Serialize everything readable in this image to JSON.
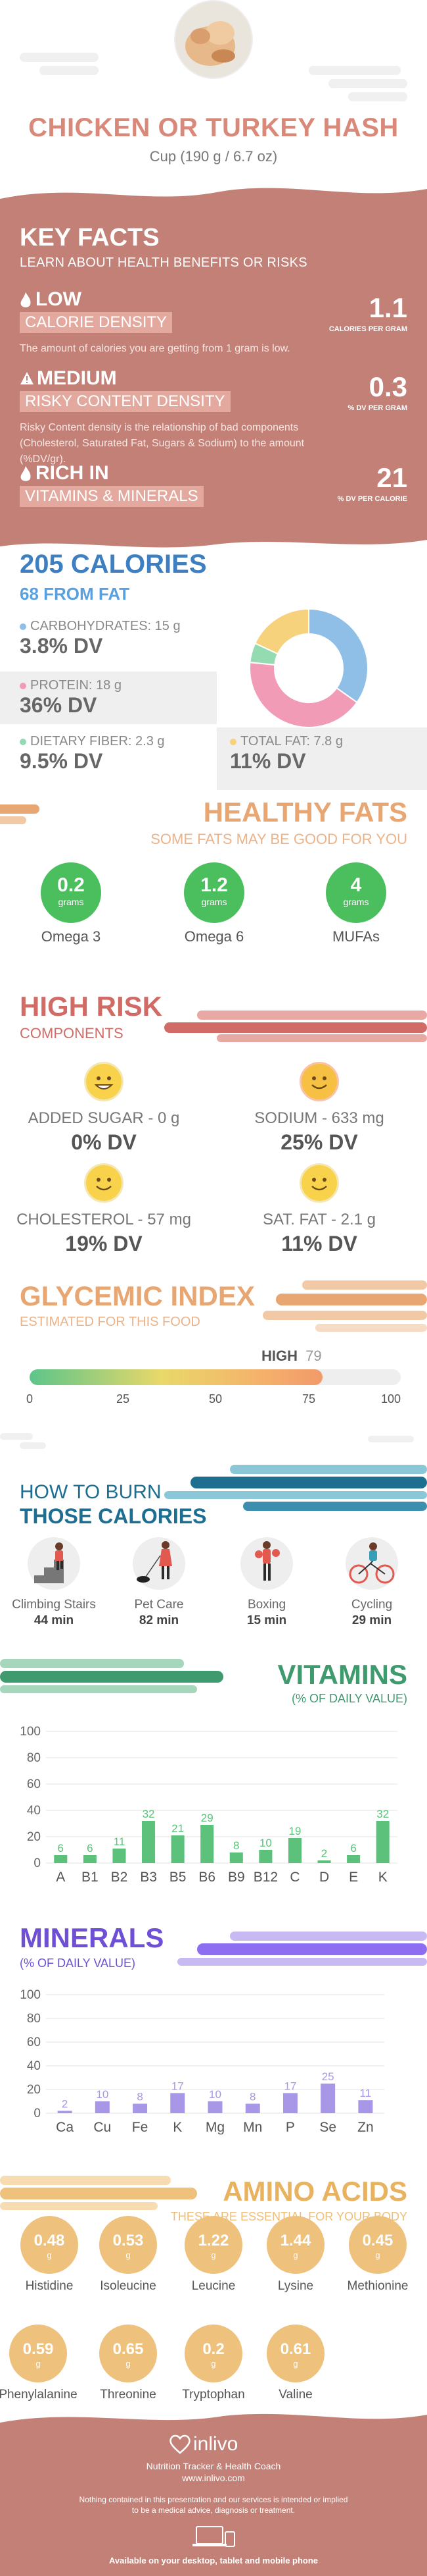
{
  "header": {
    "title": "CHICKEN OR TURKEY HASH",
    "serving": "Cup (190 g / 6.7 oz)"
  },
  "key_facts": {
    "heading": "KEY FACTS",
    "subheading": "LEARN ABOUT HEALTH BENEFITS OR RISKS",
    "items": [
      {
        "level": "LOW",
        "tag": "CALORIE DENSITY",
        "desc": "The amount of calories you are getting from 1 gram is low.",
        "value": "1.1",
        "unit": "CALORIES PER GRAM",
        "icon": "flame-icon"
      },
      {
        "level": "MEDIUM",
        "tag": "RISKY CONTENT DENSITY",
        "desc": "Risky Content density is the relationship of bad components (Cholesterol, Saturated Fat, Sugars & Sodium) to the amount (%DV/gr).",
        "value": "0.3",
        "unit": "% DV PER GRAM",
        "icon": "warning-icon"
      },
      {
        "level": "RICH IN",
        "tag": "VITAMINS & MINERALS",
        "desc": "",
        "value": "21",
        "unit": "% DV PER CALORIE",
        "icon": "flame-icon"
      }
    ]
  },
  "calories": {
    "title": "205 CALORIES",
    "from_fat": "68 FROM FAT",
    "nutrients": [
      {
        "label": "CARBOHYDRATES: 15 g",
        "dv": "3.8% DV",
        "color": "#8fbfe6"
      },
      {
        "label": "PROTEIN: 18 g",
        "dv": "36% DV",
        "color": "#f29bb6"
      },
      {
        "label": "DIETARY FIBER: 2.3 g",
        "dv": "9.5% DV",
        "color": "#95dbb2"
      },
      {
        "label": "TOTAL FAT: 7.8 g",
        "dv": "11% DV",
        "color": "#f6d27d"
      }
    ]
  },
  "healthy_fats": {
    "title": "HEALTHY FATS",
    "subtitle": "SOME FATS MAY BE GOOD FOR YOU",
    "items": [
      {
        "value": "0.2",
        "unit": "grams",
        "name": "Omega 3"
      },
      {
        "value": "1.2",
        "unit": "grams",
        "name": "Omega 6"
      },
      {
        "value": "4",
        "unit": "grams",
        "name": "MUFAs"
      }
    ]
  },
  "high_risk": {
    "title": "HIGH RISK",
    "subtitle": "COMPONENTS",
    "items": [
      {
        "label": "ADDED SUGAR - 0 g",
        "dv": "0% DV",
        "face": "grin-face-icon"
      },
      {
        "label": "SODIUM - 633 mg",
        "dv": "25% DV",
        "face": "smile-face-icon"
      },
      {
        "label": "CHOLESTEROL - 57 mg",
        "dv": "19% DV",
        "face": "smile-face-icon"
      },
      {
        "label": "SAT. FAT - 2.1 g",
        "dv": "11% DV",
        "face": "smile-face-icon"
      }
    ]
  },
  "glycemic": {
    "title": "GLYCEMIC INDEX",
    "subtitle": "ESTIMATED FOR THIS FOOD",
    "level": "HIGH",
    "value": 79,
    "value_text": "79",
    "ticks": [
      "0",
      "25",
      "50",
      "75",
      "100"
    ]
  },
  "burn": {
    "line1": "HOW TO BURN",
    "line2": "THOSE CALORIES",
    "activities": [
      {
        "name": "Climbing Stairs",
        "min": "44 min",
        "icon": "stairs-climber-icon"
      },
      {
        "name": "Pet Care",
        "min": "82 min",
        "icon": "dog-walker-icon"
      },
      {
        "name": "Boxing",
        "min": "15 min",
        "icon": "boxer-icon"
      },
      {
        "name": "Cycling",
        "min": "29 min",
        "icon": "cyclist-icon"
      }
    ]
  },
  "vitamins": {
    "title": "VITAMINS",
    "subtitle": "(% OF DAILY VALUE)"
  },
  "minerals": {
    "title": "MINERALS",
    "subtitle": "(% OF DAILY VALUE)"
  },
  "amino": {
    "title": "AMINO ACIDS",
    "subtitle": "THESE ARE ESSENTIAL FOR YOUR BODY",
    "items": [
      {
        "value": "0.48",
        "unit": "g",
        "name": "Histidine"
      },
      {
        "value": "0.53",
        "unit": "g",
        "name": "Isoleucine"
      },
      {
        "value": "1.22",
        "unit": "g",
        "name": "Leucine"
      },
      {
        "value": "1.44",
        "unit": "g",
        "name": "Lysine"
      },
      {
        "value": "0.45",
        "unit": "g",
        "name": "Methionine"
      },
      {
        "value": "0.59",
        "unit": "g",
        "name": "Phenylalanine"
      },
      {
        "value": "0.65",
        "unit": "g",
        "name": "Threonine"
      },
      {
        "value": "0.2",
        "unit": "g",
        "name": "Tryptophan"
      },
      {
        "value": "0.61",
        "unit": "g",
        "name": "Valine"
      }
    ]
  },
  "footer": {
    "brand": "inlivo",
    "tagline": "Nutrition Tracker & Health Coach",
    "url": "www.inlivo.com",
    "disclaimer1": "Nothing contained in this presentation and our services is intended or implied",
    "disclaimer2": "to be a medical advice, diagnosis or treatment.",
    "available": "Available on your desktop, tablet and mobile phone"
  },
  "colors": {
    "brand": "#c38077",
    "vitamin_bar": "#5cc17a",
    "mineral_bar": "#a896e6",
    "pie_carbs": "#8fbfe6",
    "pie_protein": "#f29bb6",
    "pie_fiber": "#95dbb2",
    "pie_fat": "#f6d27d"
  },
  "chart_data": [
    {
      "type": "pie",
      "labels": [
        "Carbohydrates",
        "Protein",
        "Dietary Fiber",
        "Total Fat"
      ],
      "values": [
        15,
        18,
        2.3,
        7.8
      ]
    },
    {
      "type": "bar",
      "title": "VITAMINS",
      "subtitle": "(% OF DAILY VALUE)",
      "categories": [
        "A",
        "B1",
        "B2",
        "B3",
        "B5",
        "B6",
        "B9",
        "B12",
        "C",
        "D",
        "E",
        "K"
      ],
      "values": [
        6,
        6,
        11,
        32,
        21,
        29,
        8,
        10,
        19,
        2,
        6,
        32
      ],
      "ylim": [
        0,
        100
      ],
      "yticks": [
        0,
        20,
        40,
        60,
        80,
        100
      ]
    },
    {
      "type": "bar",
      "title": "MINERALS",
      "subtitle": "(% OF DAILY VALUE)",
      "categories": [
        "Ca",
        "Cu",
        "Fe",
        "K",
        "Mg",
        "Mn",
        "P",
        "Se",
        "Zn"
      ],
      "values": [
        2,
        10,
        8,
        17,
        10,
        8,
        17,
        25,
        11
      ],
      "ylim": [
        0,
        100
      ],
      "yticks": [
        0,
        20,
        40,
        60,
        80,
        100
      ]
    }
  ]
}
